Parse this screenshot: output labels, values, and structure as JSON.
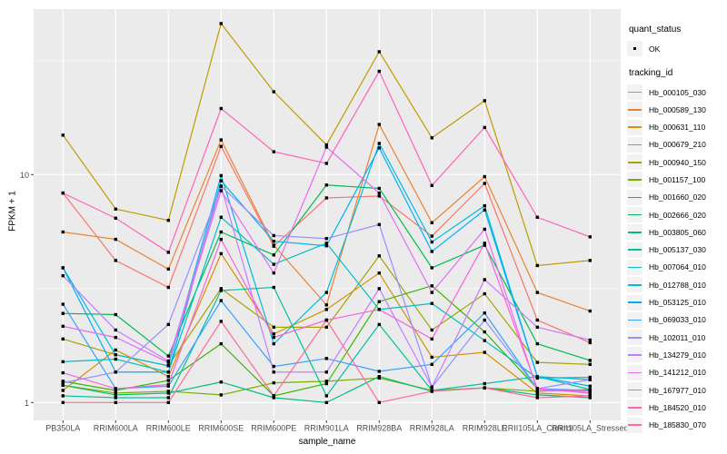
{
  "axes": {
    "x_title": "sample_name",
    "y_title": "FPKM + 1",
    "y_tick_labels": [
      "10",
      "1"
    ]
  },
  "legend": {
    "quant_title": "quant_status",
    "quant_ok_label": "OK",
    "tracking_title": "tracking_id"
  },
  "style": {
    "panel_bg": "#ebebeb",
    "grid_color": "#ffffff",
    "tick_color": "#333333",
    "tick_label_color": "#4d4d4d",
    "point_color": "#000000",
    "key_bg": "#f2f2f2"
  },
  "chart_data": {
    "type": "line",
    "title": "",
    "xlabel": "sample_name",
    "ylabel": "FPKM + 1",
    "y_scale": "log10",
    "ylim": [
      0.88,
      53.2
    ],
    "y_major_breaks": [
      1,
      10
    ],
    "y_minor_breaks": [
      3.162,
      31.623
    ],
    "legend_position": "right",
    "grid": true,
    "point_shape": "filled-square-black (quant_status = OK)",
    "categories": [
      "PB350LA",
      "RRIM600LA",
      "RRIM600LE",
      "RRIM600SE",
      "RRIM600PE",
      "RRIM901LA",
      "RRIM928BA",
      "RRIM928LA",
      "RRIM928LE",
      "RRII105LA_Control",
      "RRII105LA_Stressed"
    ],
    "series": [
      {
        "name": "Hb_000105_030",
        "color": "#F8766D",
        "values": [
          8.3,
          4.2,
          3.2,
          13.3,
          4.85,
          7.9,
          8.05,
          5.37,
          9.15,
          2.3,
          1.83
        ]
      },
      {
        "name": "Hb_000589_130",
        "color": "#EA8331",
        "values": [
          5.6,
          5.2,
          3.85,
          14.2,
          4.9,
          2.68,
          16.6,
          6.15,
          9.8,
          3.04,
          2.52
        ]
      },
      {
        "name": "Hb_000631_110",
        "color": "#D89000",
        "values": [
          1.13,
          1.7,
          1.3,
          4.5,
          2.0,
          2.56,
          3.7,
          1.58,
          1.66,
          1.1,
          1.07
        ]
      },
      {
        "name": "Hb_000679_210",
        "color": "#C09B00",
        "values": [
          14.9,
          7.06,
          6.3,
          46.0,
          23.1,
          13.5,
          34.6,
          14.5,
          21.1,
          3.99,
          4.2
        ]
      },
      {
        "name": "Hb_000940_150",
        "color": "#A3A500",
        "values": [
          1.9,
          1.62,
          1.45,
          3.16,
          2.14,
          2.14,
          4.4,
          2.08,
          3.0,
          1.5,
          1.47
        ]
      },
      {
        "name": "Hb_001157_100",
        "color": "#7CAE00",
        "values": [
          1.19,
          1.1,
          1.12,
          1.08,
          1.22,
          1.24,
          1.28,
          1.13,
          1.16,
          1.12,
          1.14
        ]
      },
      {
        "name": "Hb_001660_020",
        "color": "#39B600",
        "values": [
          1.24,
          1.13,
          1.25,
          1.81,
          1.07,
          1.21,
          2.77,
          3.25,
          2.04,
          1.15,
          1.1
        ]
      },
      {
        "name": "Hb_002666_020",
        "color": "#00BB4E",
        "values": [
          2.46,
          2.43,
          1.6,
          5.6,
          4.44,
          9.0,
          8.7,
          3.9,
          4.9,
          1.81,
          1.53
        ]
      },
      {
        "name": "Hb_003805_060",
        "color": "#00BF7D",
        "values": [
          1.19,
          1.08,
          1.1,
          1.23,
          1.05,
          1.0,
          1.3,
          1.12,
          1.16,
          1.08,
          1.05
        ]
      },
      {
        "name": "Hb_005137_030",
        "color": "#00C1A3",
        "values": [
          1.07,
          1.05,
          1.05,
          3.1,
          3.2,
          1.07,
          2.2,
          1.13,
          1.21,
          1.3,
          1.14
        ]
      },
      {
        "name": "Hb_007064_010",
        "color": "#00BFC4",
        "values": [
          1.51,
          1.55,
          1.36,
          6.5,
          4.04,
          5.0,
          2.56,
          2.72,
          1.87,
          1.28,
          1.29
        ]
      },
      {
        "name": "Hb_012788_010",
        "color": "#00BAE0",
        "values": [
          3.9,
          1.62,
          1.45,
          9.9,
          1.81,
          3.04,
          13.7,
          5.06,
          7.3,
          1.3,
          1.26
        ]
      },
      {
        "name": "Hb_053125_010",
        "color": "#00B0F6",
        "values": [
          3.9,
          1.36,
          1.36,
          9.4,
          5.1,
          4.87,
          13.1,
          4.6,
          7.0,
          1.3,
          1.18
        ]
      },
      {
        "name": "Hb_069033_010",
        "color": "#35A2FF",
        "values": [
          2.7,
          1.15,
          1.18,
          2.8,
          1.44,
          1.56,
          1.37,
          1.47,
          2.47,
          1.15,
          1.13
        ]
      },
      {
        "name": "Hb_102011_010",
        "color": "#9590FF",
        "values": [
          1.22,
          1.36,
          2.2,
          8.9,
          5.4,
          5.24,
          6.04,
          1.17,
          2.3,
          1.15,
          1.26
        ]
      },
      {
        "name": "Hb_134279_010",
        "color": "#C77CFF",
        "values": [
          3.6,
          2.08,
          1.52,
          8.9,
          1.36,
          1.36,
          3.16,
          1.17,
          3.46,
          2.14,
          1.88
        ]
      },
      {
        "name": "Hb_141212_010",
        "color": "#E76BF3",
        "values": [
          2.16,
          1.93,
          1.5,
          8.5,
          3.7,
          13.2,
          8.3,
          3.04,
          5.76,
          1.13,
          1.12
        ]
      },
      {
        "name": "Hb_167977_010",
        "color": "#FA62DB",
        "values": [
          1.35,
          1.15,
          1.2,
          5.2,
          1.93,
          2.3,
          2.56,
          1.9,
          5.0,
          1.15,
          1.1
        ]
      },
      {
        "name": "Hb_184520_010",
        "color": "#FF62BC",
        "values": [
          8.3,
          6.44,
          4.56,
          19.5,
          12.6,
          11.2,
          28.4,
          8.96,
          16.1,
          6.5,
          5.33
        ]
      },
      {
        "name": "Hb_185830_070",
        "color": "#FF6A98",
        "values": [
          1.0,
          1.0,
          1.0,
          2.27,
          1.07,
          2.3,
          1.0,
          1.12,
          1.16,
          1.05,
          1.07
        ]
      }
    ]
  }
}
